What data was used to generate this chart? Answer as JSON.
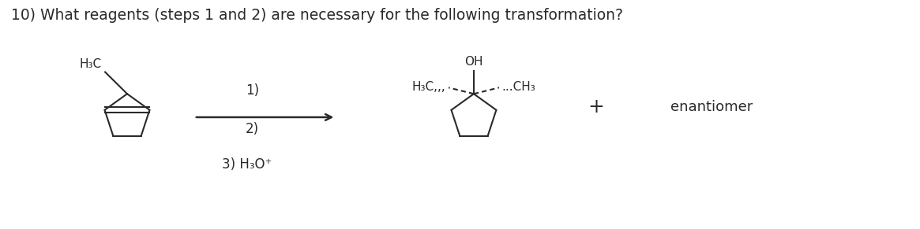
{
  "title": "10) What reagents (steps 1 and 2) are necessary for the following transformation?",
  "title_fontsize": 13.5,
  "background_color": "#ffffff",
  "text_color": "#2a2a2a",
  "step1_label": "1)",
  "step2_label": "2)",
  "step3_label": "3) H₃O⁺",
  "plus_sign": "+",
  "enantiomer_label": "enantiomer",
  "reactant_h3c_label": "H₃C",
  "product_h3c_label": "H₃C,,,",
  "product_ch3_label": "...CH₃",
  "product_oh_label": "OH"
}
